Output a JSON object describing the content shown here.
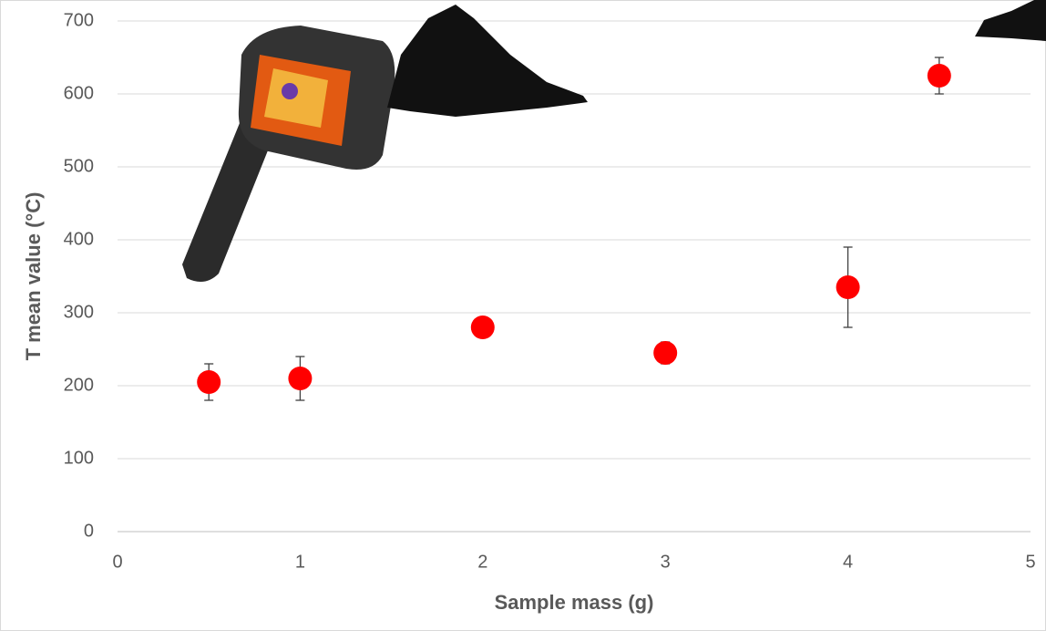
{
  "chart_data": {
    "type": "scatter",
    "x_label": "Sample mass (g)",
    "y_label": "T mean value (°C)",
    "series": [
      {
        "color": "#ff0000",
        "x": [
          0.5,
          1,
          2,
          3,
          4,
          4.5
        ],
        "y": [
          205,
          210,
          280,
          245,
          335,
          625
        ],
        "error": [
          25,
          30,
          5,
          15,
          55,
          25
        ]
      }
    ],
    "xlim": [
      0,
      5
    ],
    "ylim": [
      0,
      700
    ],
    "xticks": [
      0,
      1,
      2,
      3,
      4,
      5
    ],
    "yticks": [
      0,
      100,
      200,
      300,
      400,
      500,
      600,
      700
    ],
    "grid": true
  }
}
